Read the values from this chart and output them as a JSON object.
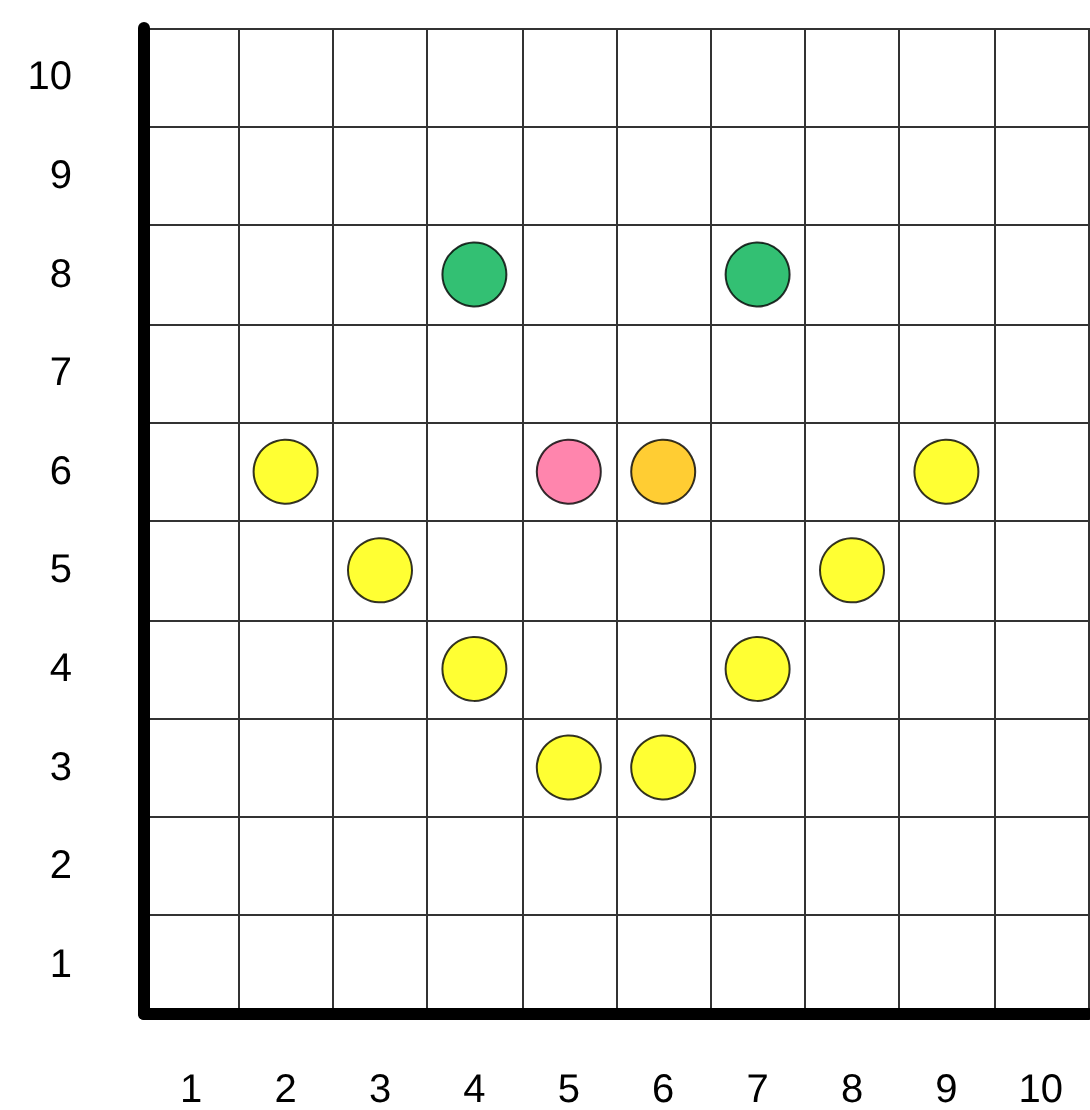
{
  "chart_data": {
    "type": "scatter",
    "categories": [
      "1",
      "2",
      "3",
      "4",
      "5",
      "6",
      "7",
      "8",
      "9",
      "10"
    ],
    "ylim": [
      0.5,
      10.5
    ],
    "yticks": [
      {
        "value": 0.5,
        "label": null
      },
      1,
      {
        "value": 1.5,
        "label": null
      },
      2,
      {
        "value": 2.5,
        "label": null
      },
      3,
      {
        "value": 3.5,
        "label": null
      },
      4,
      {
        "value": 4.5,
        "label": null
      },
      5,
      {
        "value": 5.5,
        "label": null
      },
      6,
      {
        "value": 6.5,
        "label": null
      },
      7,
      {
        "value": 7.5,
        "label": null
      },
      8,
      {
        "value": 8.5,
        "label": null
      },
      9,
      {
        "value": 9.5,
        "label": null
      },
      10,
      {
        "value": 10.5,
        "label": null
      }
    ],
    "grid": true,
    "marker": "circle",
    "series": [
      {
        "x": [
          "4",
          "7",
          "2",
          "3",
          "4",
          "5",
          "5",
          "6",
          "6",
          "7",
          "8",
          "9"
        ],
        "values": [
          8,
          8,
          6,
          5,
          4,
          3,
          6,
          6,
          3,
          4,
          5,
          6
        ],
        "colors": [
          "#00b050",
          "#00b050",
          "#ffff00",
          "#ffff00",
          "#ffff00",
          "#ffff00",
          "#ff6699",
          "#ffc000",
          "#ffff00",
          "#ffff00",
          "#ffff00",
          "#ffff00"
        ]
      }
    ]
  }
}
